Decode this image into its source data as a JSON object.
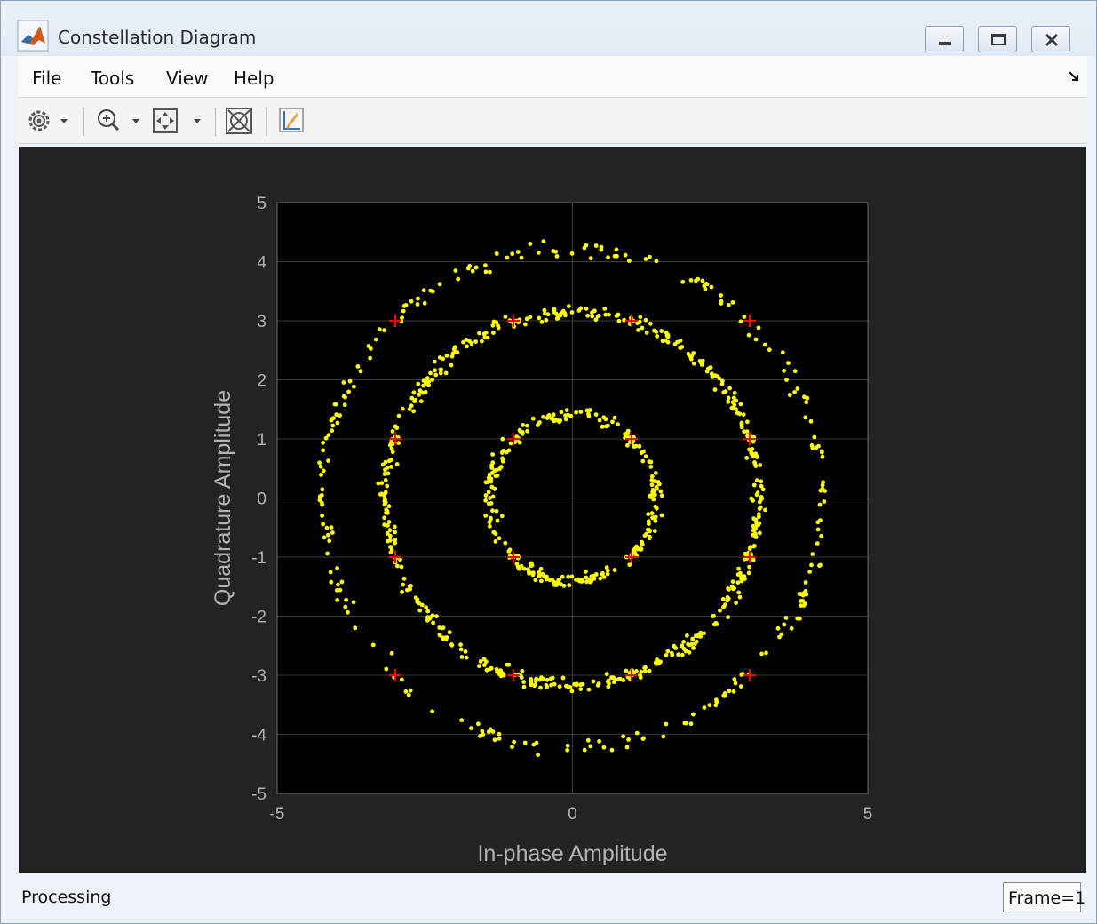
{
  "window": {
    "title": "Constellation Diagram",
    "controls": [
      "minimize",
      "restore",
      "close"
    ]
  },
  "menubar": {
    "items": [
      "File",
      "Tools",
      "View",
      "Help"
    ]
  },
  "toolbar": {
    "items": [
      "settings-gear-icon",
      "zoom-in-icon",
      "scale-axes-icon",
      "reference-constellation-icon",
      "highlight-icon"
    ]
  },
  "statusbar": {
    "status": "Processing",
    "frame": "Frame=1"
  },
  "colors": {
    "background": "#232323",
    "axes": "#000000",
    "points": "#ffff00",
    "reference": "#ff0000",
    "text": "#b3b3b3"
  },
  "chart_data": {
    "type": "scatter",
    "title": "",
    "xlabel": "In-phase Amplitude",
    "ylabel": "Quadrature Amplitude",
    "xlim": [
      -5,
      5
    ],
    "ylim": [
      -5,
      5
    ],
    "xticks": [
      "-5",
      "0",
      "5"
    ],
    "yticks": [
      "5",
      "4",
      "3",
      "2",
      "1",
      "0",
      "-1",
      "-2",
      "-3",
      "-4",
      "-5"
    ],
    "grid": true,
    "reference_points": [
      [
        -3,
        3
      ],
      [
        -1,
        3
      ],
      [
        1,
        3
      ],
      [
        3,
        3
      ],
      [
        -3,
        1
      ],
      [
        -1,
        1
      ],
      [
        1,
        1
      ],
      [
        3,
        1
      ],
      [
        -3,
        -1
      ],
      [
        -1,
        -1
      ],
      [
        1,
        -1
      ],
      [
        3,
        -1
      ],
      [
        -3,
        -3
      ],
      [
        -1,
        -3
      ],
      [
        1,
        -3
      ],
      [
        3,
        -3
      ]
    ],
    "received_rings": [
      {
        "radius": 1.41,
        "count": 260
      },
      {
        "radius": 3.16,
        "count": 520
      },
      {
        "radius": 4.24,
        "count": 260
      }
    ]
  }
}
